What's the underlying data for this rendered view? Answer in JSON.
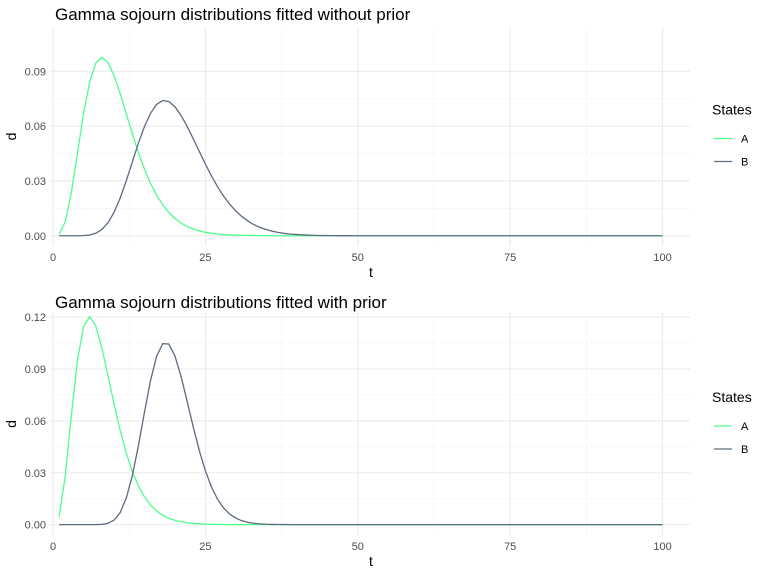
{
  "chart_data": [
    {
      "type": "line",
      "title": "Gamma sojourn distributions fitted without prior",
      "xlabel": "t",
      "ylabel": "d",
      "xlim": [
        1,
        100
      ],
      "ylim": [
        0,
        0.112
      ],
      "xticks": [
        0,
        25,
        50,
        75,
        100
      ],
      "yticks": [
        0,
        0.03,
        0.06,
        0.09
      ],
      "ytick_labels": [
        "0.00",
        "0.03",
        "0.06",
        "0.09"
      ],
      "grid": true,
      "legend": {
        "title": "States",
        "position": "right"
      },
      "series": [
        {
          "name": "A",
          "color": "#4dff8a",
          "gamma_shape": 5,
          "gamma_rate": 0.5
        },
        {
          "name": "B",
          "color": "#5c6b7f",
          "gamma_shape": 12.7,
          "gamma_rate": 0.64
        }
      ]
    },
    {
      "type": "line",
      "title": "Gamma sojourn distributions fitted with prior",
      "xlabel": "t",
      "ylabel": "d",
      "xlim": [
        1,
        100
      ],
      "ylim": [
        0,
        0.12
      ],
      "xticks": [
        0,
        25,
        50,
        75,
        100
      ],
      "yticks": [
        0,
        0.03,
        0.06,
        0.09,
        0.12
      ],
      "ytick_labels": [
        "0.00",
        "0.03",
        "0.06",
        "0.09",
        "0.12"
      ],
      "grid": true,
      "legend": {
        "title": "States",
        "position": "right"
      },
      "series": [
        {
          "name": "A",
          "color": "#4dff8a",
          "gamma_shape": 4.4,
          "gamma_rate": 0.57
        },
        {
          "name": "B",
          "color": "#5c6b7f",
          "gamma_shape": 25,
          "gamma_rate": 1.3
        }
      ]
    }
  ]
}
